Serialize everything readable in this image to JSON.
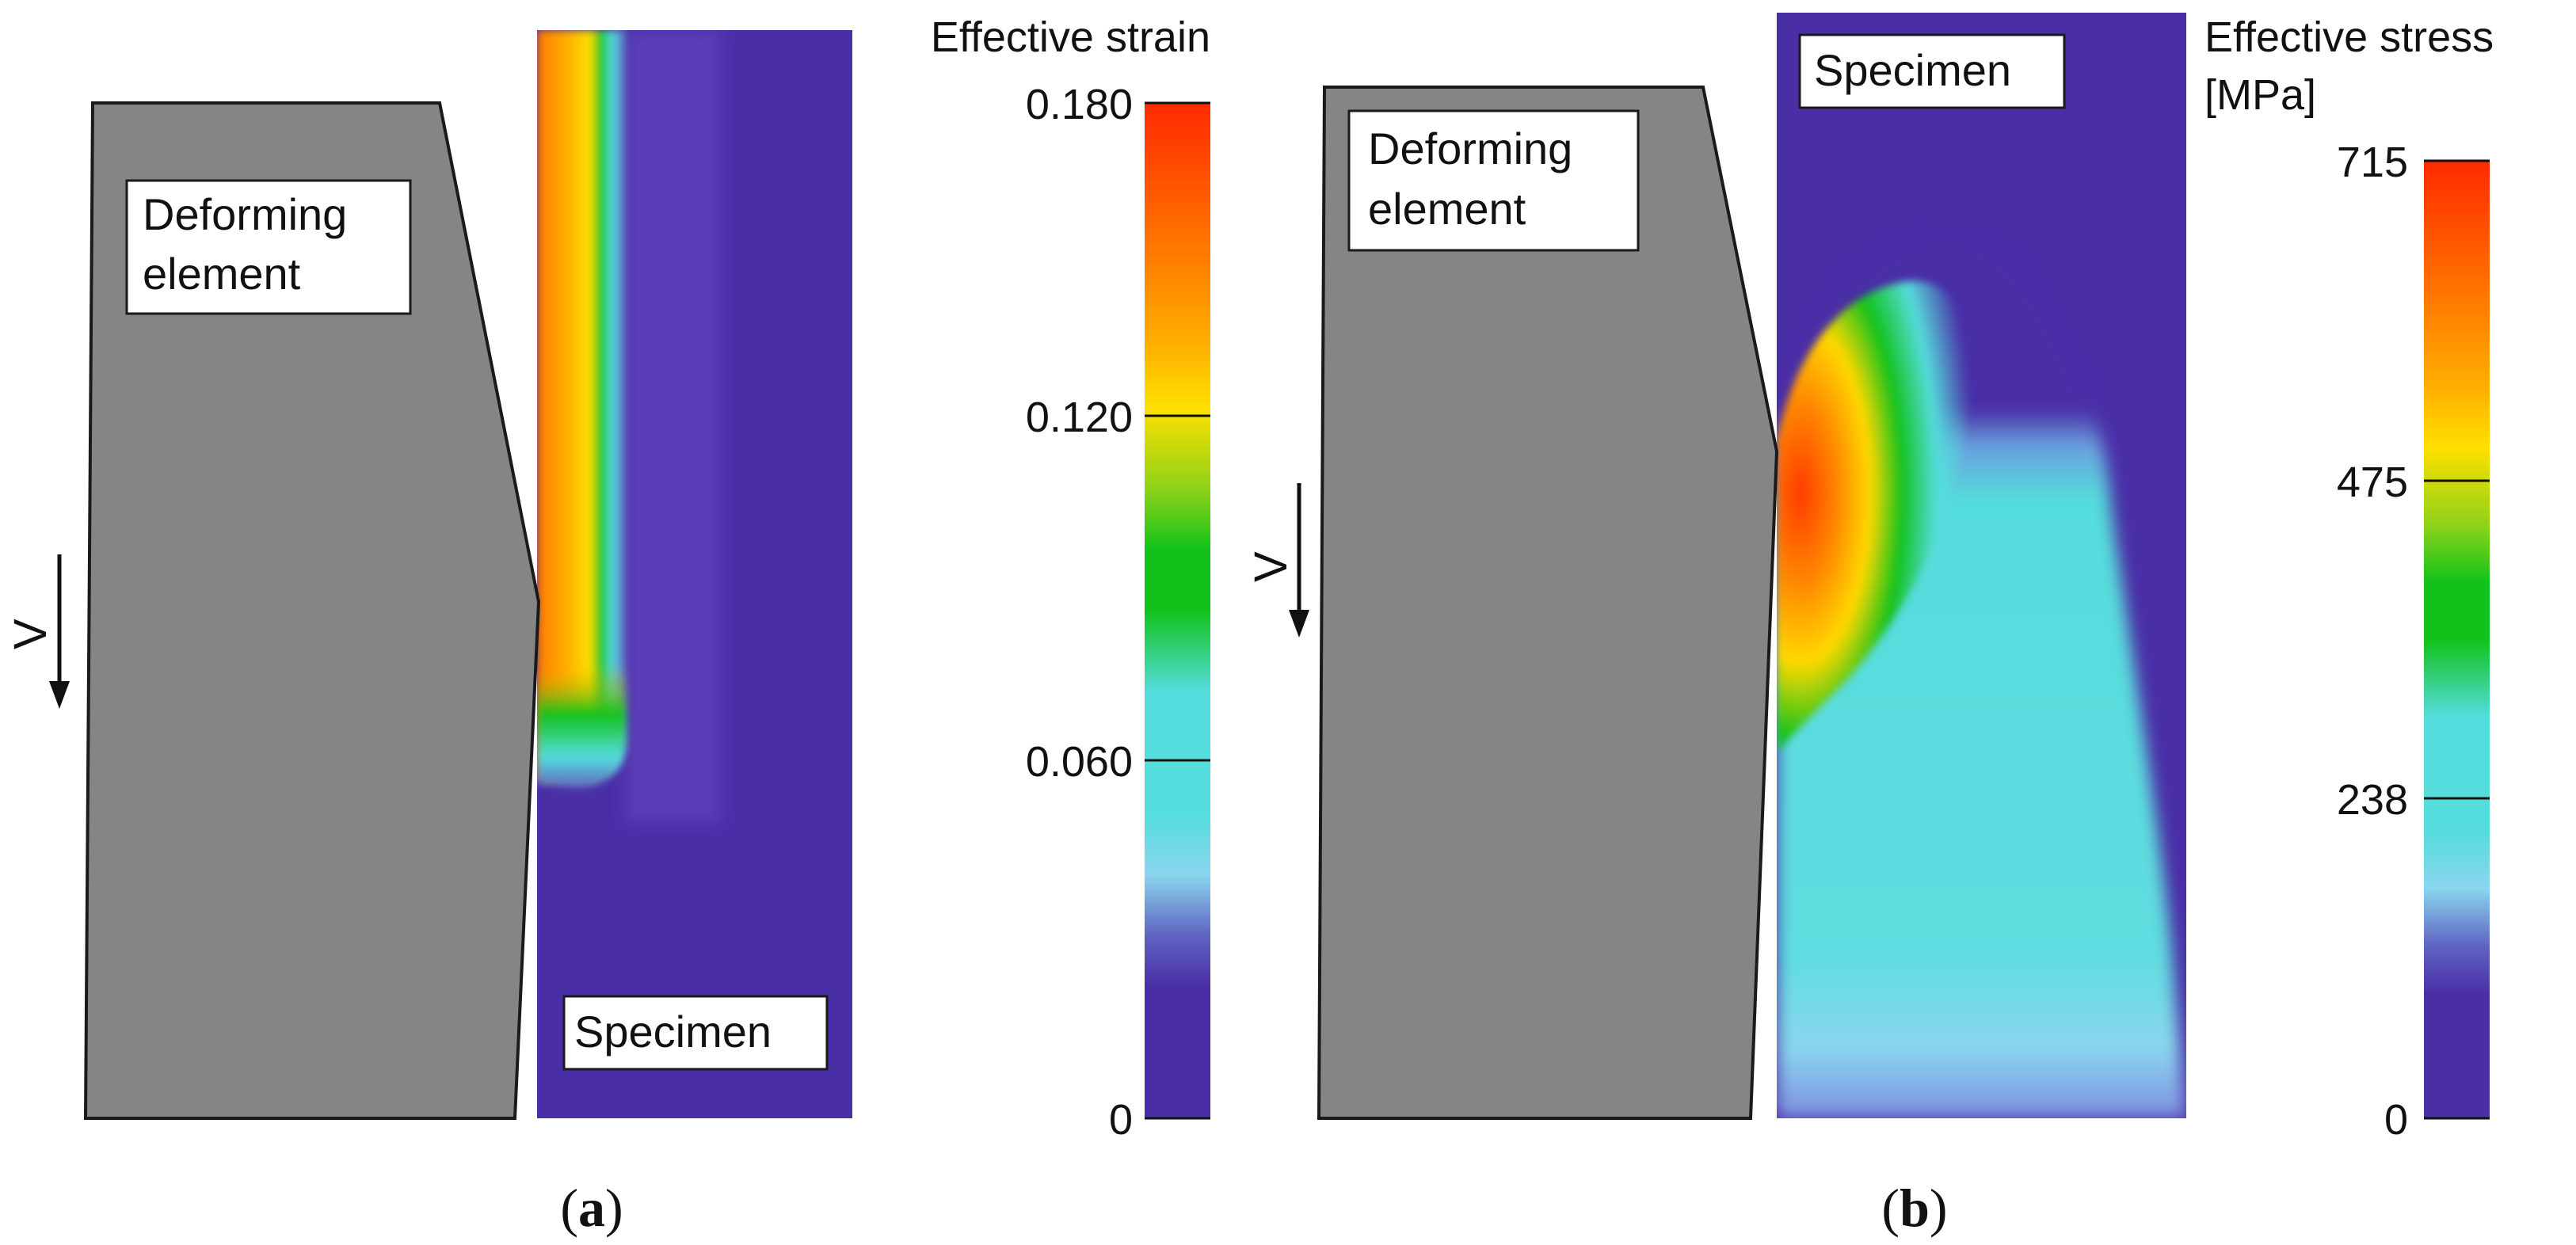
{
  "panel_a": {
    "element_label_line1": "Deforming",
    "element_label_line2": "element",
    "specimen_label": "Specimen",
    "velocity_label": "V",
    "legend_title": "Effective strain",
    "legend_ticks": [
      "0.180",
      "0.120",
      "0.060",
      "0"
    ],
    "caption_letter": "a",
    "paren_open": "(",
    "paren_close": ")"
  },
  "panel_b": {
    "element_label_line1": "Deforming",
    "element_label_line2": "element",
    "specimen_label": "Specimen",
    "velocity_label": "V",
    "legend_title_line1": "Effective stress",
    "legend_title_line2": "[MPa]",
    "legend_ticks": [
      "715",
      "475",
      "238",
      "0"
    ],
    "caption_letter": "b",
    "paren_open": "(",
    "paren_close": ")"
  },
  "colors": {
    "tool_gray": "#858585",
    "field_purple": "#4a2ea6",
    "legend_red": "#ff2a00",
    "legend_orange": "#ff8a00",
    "legend_yellow": "#ffd800",
    "legend_green": "#12c21a",
    "legend_cyan": "#55dcdc",
    "legend_blue": "#5f64c2"
  }
}
